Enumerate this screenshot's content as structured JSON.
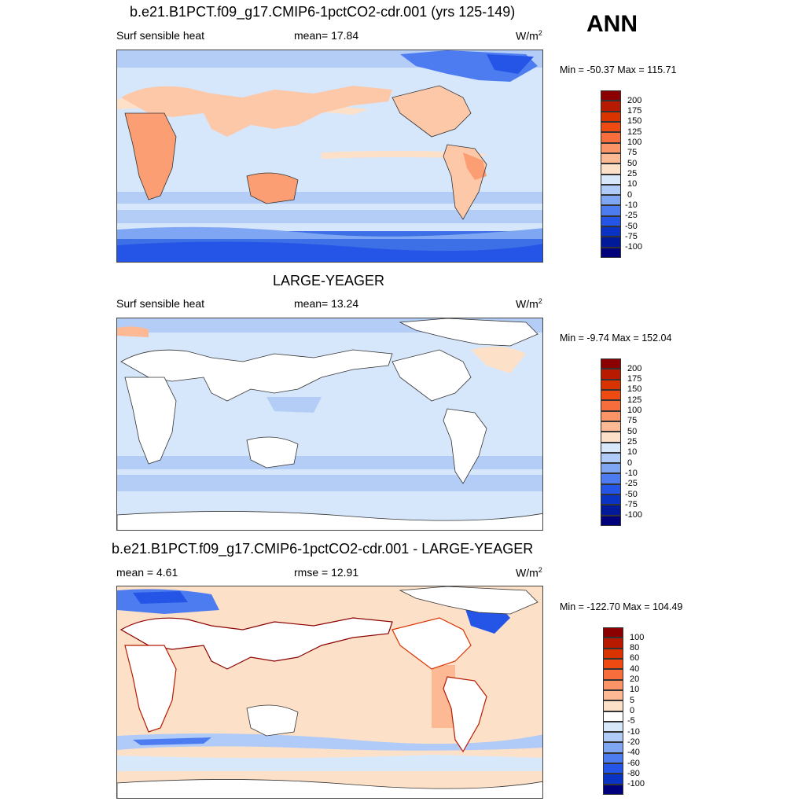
{
  "header": {
    "ann_label": "ANN"
  },
  "panels": [
    {
      "title": "b.e21.B1PCT.f09_g17.CMIP6-1pctCO2-cdr.001 (yrs 125-149)",
      "variable": "Surf sensible heat",
      "stat": "mean=  17.84",
      "units": "W/m",
      "units_sup": "2",
      "minmax": "Min = -50.37 Max = 115.71",
      "colorbar_ticks": [
        "200",
        "175",
        "150",
        "125",
        "100",
        "75",
        "50",
        "25",
        "10",
        "0",
        "-10",
        "-25",
        "-50",
        "-75",
        "-100"
      ],
      "colorbar_colors": [
        "#8b0000",
        "#b81a00",
        "#d93300",
        "#ee4a12",
        "#f76e3c",
        "#fb9466",
        "#fdb894",
        "#fde0c8",
        "#d8e8fb",
        "#b0cbf7",
        "#7ea6f2",
        "#4d7cf0",
        "#2455e6",
        "#0a33c4",
        "#001a99",
        "#00007d"
      ]
    },
    {
      "title": "LARGE-YEAGER",
      "variable": "Surf sensible heat",
      "stat": "mean=  13.24",
      "units": "W/m",
      "units_sup": "2",
      "minmax": "Min =  -9.74 Max = 152.04",
      "colorbar_ticks": [
        "200",
        "175",
        "150",
        "125",
        "100",
        "75",
        "50",
        "25",
        "10",
        "0",
        "-10",
        "-25",
        "-50",
        "-75",
        "-100"
      ],
      "colorbar_colors": [
        "#8b0000",
        "#b81a00",
        "#d93300",
        "#ee4a12",
        "#f76e3c",
        "#fb9466",
        "#fdb894",
        "#fde0c8",
        "#d8e8fb",
        "#b0cbf7",
        "#7ea6f2",
        "#4d7cf0",
        "#2455e6",
        "#0a33c4",
        "#001a99",
        "#00007d"
      ]
    },
    {
      "title": "b.e21.B1PCT.f09_g17.CMIP6-1pctCO2-cdr.001 - LARGE-YEAGER",
      "variable": "mean =   4.61",
      "stat": "rmse =  12.91",
      "units": "W/m",
      "units_sup": "2",
      "minmax": "Min = -122.70 Max = 104.49",
      "colorbar_ticks": [
        "100",
        "80",
        "60",
        "40",
        "20",
        "10",
        "5",
        "0",
        "-5",
        "-10",
        "-20",
        "-40",
        "-60",
        "-80",
        "-100"
      ],
      "colorbar_colors": [
        "#8b0000",
        "#b81a00",
        "#d93300",
        "#ee4a12",
        "#f76e3c",
        "#fb9466",
        "#fdb894",
        "#fde0c8",
        "#ffffff",
        "#d8e8fb",
        "#b0cbf7",
        "#7ea6f2",
        "#4d7cf0",
        "#2455e6",
        "#0a33c4",
        "#00007d"
      ]
    }
  ]
}
